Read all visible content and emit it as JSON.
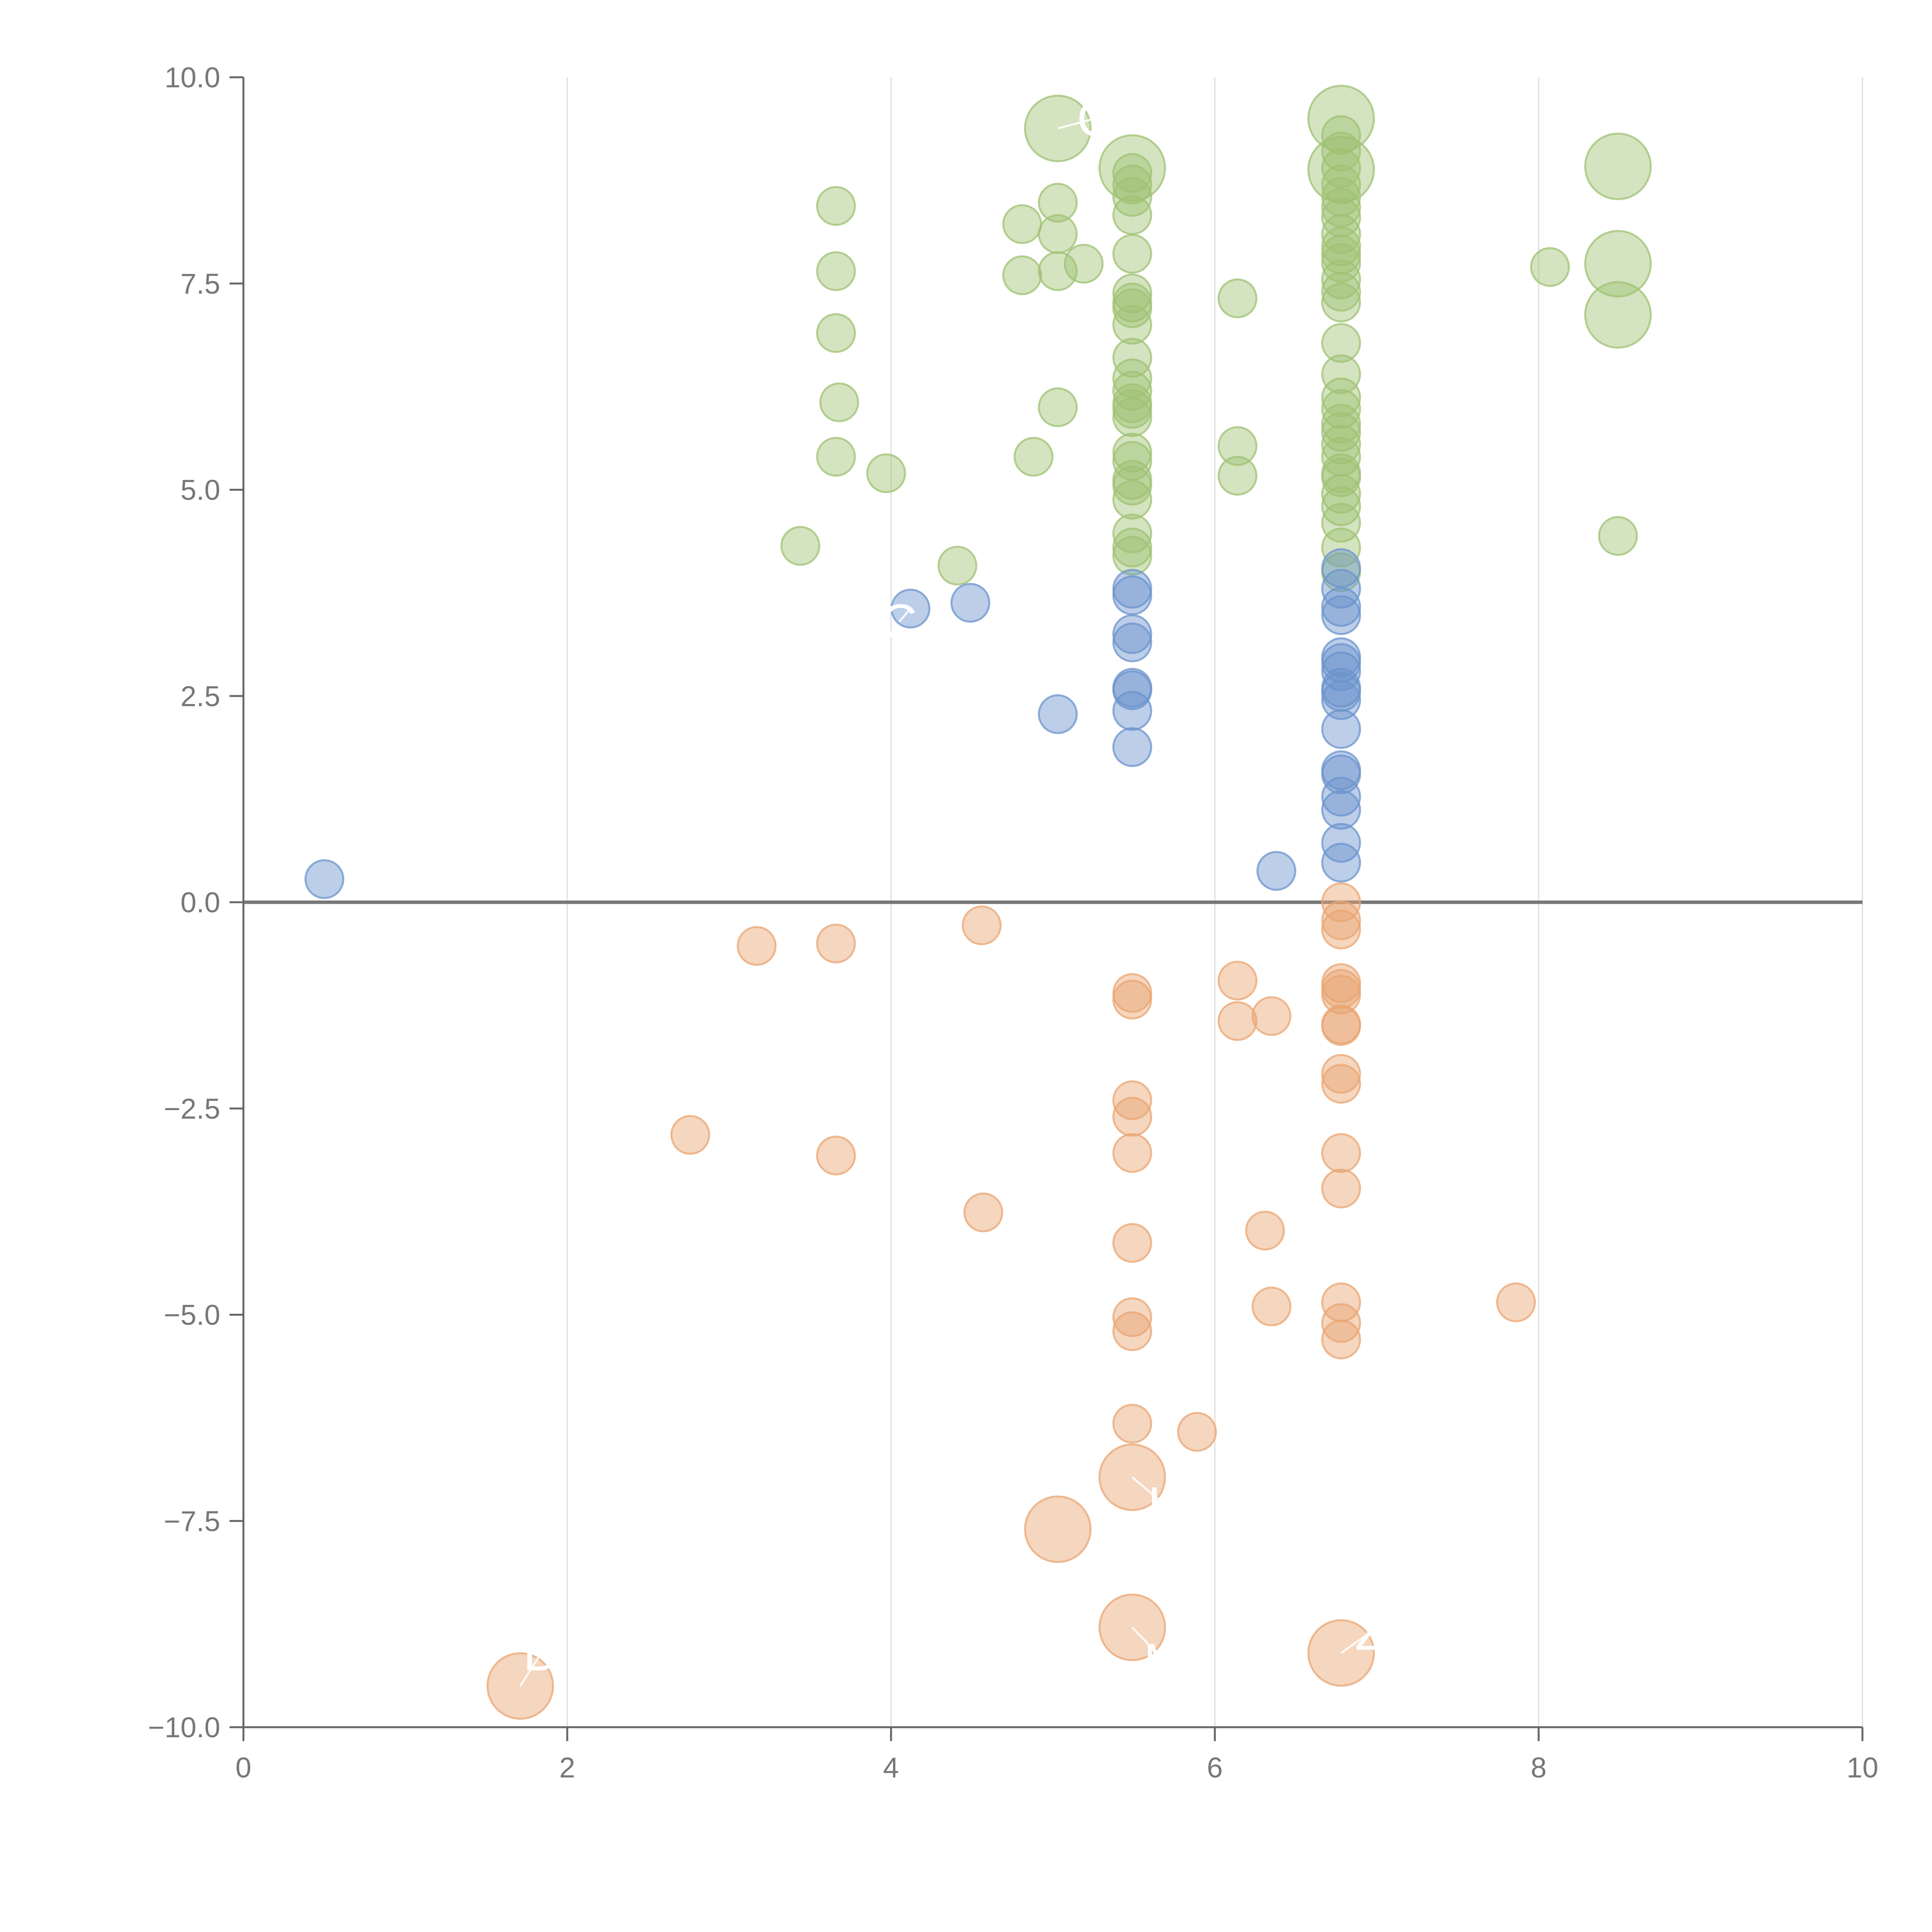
{
  "chart_data": {
    "type": "scatter",
    "title": "",
    "xlabel": "",
    "ylabel": "",
    "xlim": [
      0,
      10
    ],
    "ylim": [
      -10,
      10
    ],
    "x_ticks": [
      0,
      2,
      4,
      6,
      8,
      10
    ],
    "y_ticks": [
      10,
      7.5,
      5,
      2.5,
      0,
      -2.5,
      -5,
      -7.5,
      -10
    ],
    "x_tick_labels": [
      "0",
      "2",
      "4",
      "6",
      "8",
      "10"
    ],
    "y_tick_labels": [
      "10.0",
      "7.5",
      "5.0",
      "2.5",
      "0.0",
      "−2.5",
      "−5.0",
      "−7.5",
      "−10.0"
    ],
    "x_grid": true,
    "y_grid": false,
    "zero_line": true,
    "colors": {
      "high": "#9fc173",
      "mid": "#6b93cd",
      "low": "#e9a571",
      "axis": "#666666",
      "zero": "#777777",
      "grid": "#dddddd"
    },
    "series": [
      {
        "name": "high",
        "color": "#9fc173",
        "points": [
          {
            "x": 3.44,
            "y": 4.32,
            "s": 1
          },
          {
            "x": 3.66,
            "y": 8.44,
            "s": 1
          },
          {
            "x": 3.66,
            "y": 7.65,
            "s": 1
          },
          {
            "x": 3.66,
            "y": 6.9,
            "s": 1
          },
          {
            "x": 3.68,
            "y": 6.06,
            "s": 1
          },
          {
            "x": 3.66,
            "y": 5.4,
            "s": 1
          },
          {
            "x": 3.97,
            "y": 5.2,
            "s": 1
          },
          {
            "x": 4.41,
            "y": 4.08,
            "s": 1
          },
          {
            "x": 4.81,
            "y": 8.22,
            "s": 1
          },
          {
            "x": 4.81,
            "y": 7.6,
            "s": 1
          },
          {
            "x": 4.88,
            "y": 5.4,
            "s": 1
          },
          {
            "x": 5.03,
            "y": 8.48,
            "s": 1
          },
          {
            "x": 5.03,
            "y": 8.1,
            "s": 1
          },
          {
            "x": 5.03,
            "y": 7.65,
            "s": 1
          },
          {
            "x": 5.03,
            "y": 6.0,
            "s": 1
          },
          {
            "x": 5.19,
            "y": 7.74,
            "s": 1
          },
          {
            "x": 5.03,
            "y": 9.38,
            "s": 3
          },
          {
            "x": 5.49,
            "y": 8.9,
            "s": 3
          },
          {
            "x": 5.49,
            "y": 8.84,
            "s": 1
          },
          {
            "x": 5.49,
            "y": 8.7,
            "s": 1
          },
          {
            "x": 5.49,
            "y": 8.55,
            "s": 1
          },
          {
            "x": 5.49,
            "y": 8.33,
            "s": 1
          },
          {
            "x": 5.49,
            "y": 7.86,
            "s": 1
          },
          {
            "x": 5.49,
            "y": 7.38,
            "s": 1
          },
          {
            "x": 5.49,
            "y": 7.27,
            "s": 1
          },
          {
            "x": 5.49,
            "y": 7.2,
            "s": 1
          },
          {
            "x": 5.49,
            "y": 7.0,
            "s": 1
          },
          {
            "x": 5.49,
            "y": 6.6,
            "s": 1
          },
          {
            "x": 5.49,
            "y": 6.35,
            "s": 1
          },
          {
            "x": 5.49,
            "y": 6.2,
            "s": 1
          },
          {
            "x": 5.49,
            "y": 6.05,
            "s": 1
          },
          {
            "x": 5.49,
            "y": 5.98,
            "s": 1
          },
          {
            "x": 5.49,
            "y": 5.88,
            "s": 1
          },
          {
            "x": 5.49,
            "y": 5.45,
            "s": 1
          },
          {
            "x": 5.49,
            "y": 5.35,
            "s": 1
          },
          {
            "x": 5.49,
            "y": 5.12,
            "s": 1
          },
          {
            "x": 5.49,
            "y": 5.05,
            "s": 1
          },
          {
            "x": 5.49,
            "y": 4.88,
            "s": 1
          },
          {
            "x": 5.49,
            "y": 4.47,
            "s": 1
          },
          {
            "x": 5.49,
            "y": 4.3,
            "s": 1
          },
          {
            "x": 5.49,
            "y": 4.2,
            "s": 1
          },
          {
            "x": 6.14,
            "y": 7.32,
            "s": 1
          },
          {
            "x": 6.14,
            "y": 5.53,
            "s": 1
          },
          {
            "x": 6.14,
            "y": 5.17,
            "s": 1
          },
          {
            "x": 6.78,
            "y": 9.5,
            "s": 3
          },
          {
            "x": 6.78,
            "y": 8.88,
            "s": 3
          },
          {
            "x": 6.78,
            "y": 9.3,
            "s": 1
          },
          {
            "x": 6.78,
            "y": 9.1,
            "s": 1
          },
          {
            "x": 6.78,
            "y": 8.9,
            "s": 1
          },
          {
            "x": 6.78,
            "y": 8.7,
            "s": 1
          },
          {
            "x": 6.78,
            "y": 8.55,
            "s": 1
          },
          {
            "x": 6.78,
            "y": 8.42,
            "s": 1
          },
          {
            "x": 6.78,
            "y": 8.3,
            "s": 1
          },
          {
            "x": 6.78,
            "y": 8.1,
            "s": 1
          },
          {
            "x": 6.78,
            "y": 7.95,
            "s": 1
          },
          {
            "x": 6.78,
            "y": 7.85,
            "s": 1
          },
          {
            "x": 6.78,
            "y": 7.75,
            "s": 1
          },
          {
            "x": 6.78,
            "y": 7.55,
            "s": 1
          },
          {
            "x": 6.78,
            "y": 7.4,
            "s": 1
          },
          {
            "x": 6.78,
            "y": 7.27,
            "s": 1
          },
          {
            "x": 6.78,
            "y": 6.78,
            "s": 1
          },
          {
            "x": 6.78,
            "y": 6.4,
            "s": 1
          },
          {
            "x": 6.78,
            "y": 6.12,
            "s": 1
          },
          {
            "x": 6.78,
            "y": 5.98,
            "s": 1
          },
          {
            "x": 6.78,
            "y": 5.8,
            "s": 1
          },
          {
            "x": 6.78,
            "y": 5.7,
            "s": 1
          },
          {
            "x": 6.78,
            "y": 5.55,
            "s": 1
          },
          {
            "x": 6.78,
            "y": 5.4,
            "s": 1
          },
          {
            "x": 6.78,
            "y": 5.2,
            "s": 1
          },
          {
            "x": 6.78,
            "y": 5.15,
            "s": 1
          },
          {
            "x": 6.78,
            "y": 4.95,
            "s": 1
          },
          {
            "x": 6.78,
            "y": 4.8,
            "s": 1
          },
          {
            "x": 6.78,
            "y": 4.6,
            "s": 1
          },
          {
            "x": 6.78,
            "y": 4.3,
            "s": 1
          },
          {
            "x": 6.78,
            "y": 4.0,
            "s": 1
          },
          {
            "x": 8.07,
            "y": 7.7,
            "s": 1
          },
          {
            "x": 8.49,
            "y": 8.92,
            "s": 3
          },
          {
            "x": 8.49,
            "y": 7.74,
            "s": 3
          },
          {
            "x": 8.49,
            "y": 7.12,
            "s": 3
          },
          {
            "x": 8.49,
            "y": 4.44,
            "s": 1
          }
        ]
      },
      {
        "name": "mid",
        "color": "#6b93cd",
        "points": [
          {
            "x": 0.5,
            "y": 0.28,
            "s": 1
          },
          {
            "x": 4.12,
            "y": 3.56,
            "s": 1
          },
          {
            "x": 4.49,
            "y": 3.63,
            "s": 1
          },
          {
            "x": 5.03,
            "y": 2.28,
            "s": 1
          },
          {
            "x": 5.49,
            "y": 3.8,
            "s": 1
          },
          {
            "x": 5.49,
            "y": 3.72,
            "s": 1
          },
          {
            "x": 5.49,
            "y": 3.25,
            "s": 1
          },
          {
            "x": 5.49,
            "y": 3.15,
            "s": 1
          },
          {
            "x": 5.49,
            "y": 2.6,
            "s": 1
          },
          {
            "x": 5.49,
            "y": 2.57,
            "s": 1
          },
          {
            "x": 5.49,
            "y": 2.32,
            "s": 1
          },
          {
            "x": 5.49,
            "y": 1.88,
            "s": 1
          },
          {
            "x": 6.38,
            "y": 0.38,
            "s": 1
          },
          {
            "x": 6.78,
            "y": 4.05,
            "s": 1
          },
          {
            "x": 6.78,
            "y": 3.8,
            "s": 1
          },
          {
            "x": 6.78,
            "y": 3.58,
            "s": 1
          },
          {
            "x": 6.78,
            "y": 3.48,
            "s": 1
          },
          {
            "x": 6.78,
            "y": 2.97,
            "s": 1
          },
          {
            "x": 6.78,
            "y": 2.9,
            "s": 1
          },
          {
            "x": 6.78,
            "y": 2.8,
            "s": 1
          },
          {
            "x": 6.78,
            "y": 2.6,
            "s": 1
          },
          {
            "x": 6.78,
            "y": 2.55,
            "s": 1
          },
          {
            "x": 6.78,
            "y": 2.45,
            "s": 1
          },
          {
            "x": 6.78,
            "y": 2.1,
            "s": 1
          },
          {
            "x": 6.78,
            "y": 1.6,
            "s": 1
          },
          {
            "x": 6.78,
            "y": 1.55,
            "s": 1
          },
          {
            "x": 6.78,
            "y": 1.28,
            "s": 1
          },
          {
            "x": 6.78,
            "y": 1.12,
            "s": 1
          },
          {
            "x": 6.78,
            "y": 0.72,
            "s": 1
          },
          {
            "x": 6.78,
            "y": 0.48,
            "s": 1
          }
        ]
      },
      {
        "name": "low",
        "color": "#e9a571",
        "points": [
          {
            "x": 2.76,
            "y": -2.82,
            "s": 1
          },
          {
            "x": 3.17,
            "y": -0.53,
            "s": 1
          },
          {
            "x": 3.66,
            "y": -0.5,
            "s": 1
          },
          {
            "x": 3.66,
            "y": -3.07,
            "s": 1
          },
          {
            "x": 4.56,
            "y": -0.28,
            "s": 1
          },
          {
            "x": 4.57,
            "y": -3.76,
            "s": 1
          },
          {
            "x": 5.49,
            "y": -1.1,
            "s": 1
          },
          {
            "x": 5.49,
            "y": -1.18,
            "s": 1
          },
          {
            "x": 5.49,
            "y": -2.4,
            "s": 1
          },
          {
            "x": 5.49,
            "y": -2.6,
            "s": 1
          },
          {
            "x": 5.49,
            "y": -3.04,
            "s": 1
          },
          {
            "x": 5.49,
            "y": -4.13,
            "s": 1
          },
          {
            "x": 5.49,
            "y": -5.03,
            "s": 1
          },
          {
            "x": 5.49,
            "y": -5.2,
            "s": 1
          },
          {
            "x": 5.49,
            "y": -6.32,
            "s": 1
          },
          {
            "x": 5.89,
            "y": -6.42,
            "s": 1
          },
          {
            "x": 6.14,
            "y": -0.95,
            "s": 1
          },
          {
            "x": 6.14,
            "y": -1.44,
            "s": 1
          },
          {
            "x": 6.35,
            "y": -1.38,
            "s": 1
          },
          {
            "x": 6.31,
            "y": -3.98,
            "s": 1
          },
          {
            "x": 6.35,
            "y": -4.9,
            "s": 1
          },
          {
            "x": 6.78,
            "y": 0.0,
            "s": 1
          },
          {
            "x": 6.78,
            "y": -0.22,
            "s": 1
          },
          {
            "x": 6.78,
            "y": -0.33,
            "s": 1
          },
          {
            "x": 6.78,
            "y": -0.98,
            "s": 1
          },
          {
            "x": 6.78,
            "y": -1.05,
            "s": 1
          },
          {
            "x": 6.78,
            "y": -1.12,
            "s": 1
          },
          {
            "x": 6.78,
            "y": -1.48,
            "s": 1
          },
          {
            "x": 6.78,
            "y": -1.5,
            "s": 1
          },
          {
            "x": 6.78,
            "y": -2.08,
            "s": 1
          },
          {
            "x": 6.78,
            "y": -2.2,
            "s": 1
          },
          {
            "x": 6.78,
            "y": -3.04,
            "s": 1
          },
          {
            "x": 6.78,
            "y": -3.47,
            "s": 1
          },
          {
            "x": 6.78,
            "y": -4.85,
            "s": 1
          },
          {
            "x": 6.78,
            "y": -5.1,
            "s": 1
          },
          {
            "x": 6.78,
            "y": -5.3,
            "s": 1
          },
          {
            "x": 7.86,
            "y": -4.85,
            "s": 1
          },
          {
            "x": 1.71,
            "y": -9.5,
            "s": 3
          },
          {
            "x": 5.03,
            "y": -7.6,
            "s": 3
          },
          {
            "x": 5.49,
            "y": -6.97,
            "s": 3
          },
          {
            "x": 5.49,
            "y": -8.79,
            "s": 3
          },
          {
            "x": 6.78,
            "y": -9.1,
            "s": 3
          }
        ]
      }
    ],
    "annotations": [
      {
        "text": "C",
        "x": 5.26,
        "y": 9.5,
        "px": 5.03,
        "py": 9.38,
        "anchor": "middle"
      },
      {
        "text": "D",
        "x": 1.84,
        "y": -9.1,
        "px": 1.71,
        "py": -9.5,
        "anchor": "middle"
      },
      {
        "text": "K",
        "x": 5.69,
        "y": -7.3,
        "px": 5.49,
        "py": -6.97,
        "anchor": "middle"
      },
      {
        "text": "M",
        "x": 5.69,
        "y": -9.2,
        "px": 5.49,
        "py": -8.79,
        "anchor": "middle"
      },
      {
        "text": "Z",
        "x": 6.96,
        "y": -8.85,
        "px": 6.78,
        "py": -9.1,
        "anchor": "middle"
      },
      {
        "text": "C",
        "x": 4.05,
        "y": 3.4,
        "px": 4.12,
        "py": 3.56,
        "anchor": "middle"
      }
    ]
  }
}
